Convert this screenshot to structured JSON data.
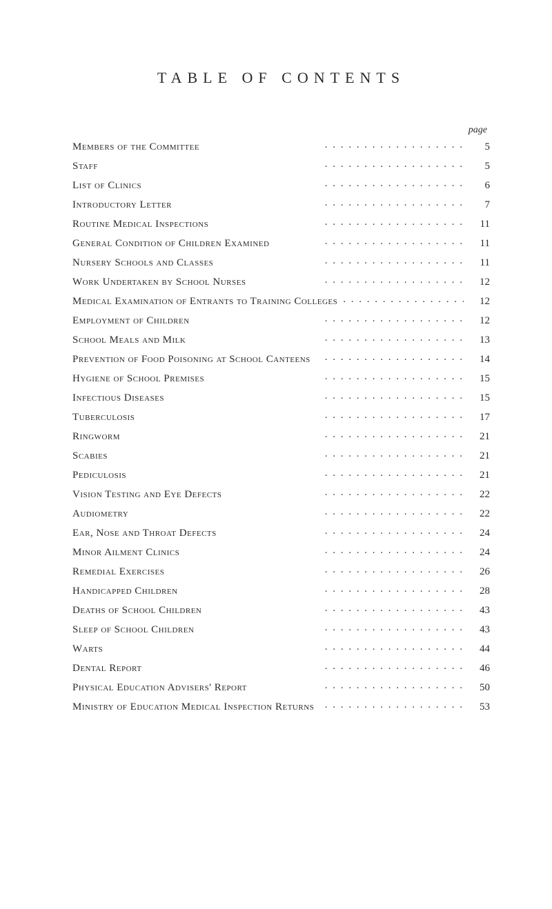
{
  "title": "TABLE OF CONTENTS",
  "pageHeader": "page",
  "entries": [
    {
      "label": "Members of the Committee",
      "page": "5"
    },
    {
      "label": "Staff",
      "page": "5"
    },
    {
      "label": "List of Clinics",
      "page": "6"
    },
    {
      "label": "Introductory Letter",
      "page": "7"
    },
    {
      "label": "Routine Medical Inspections",
      "page": "11"
    },
    {
      "label": "General Condition of Children Examined",
      "page": "11"
    },
    {
      "label": "Nursery Schools and Classes",
      "page": "11"
    },
    {
      "label": "Work Undertaken by School Nurses",
      "page": "12"
    },
    {
      "label": "Medical Examination of Entrants to Training Colleges",
      "page": "12"
    },
    {
      "label": "Employment of Children",
      "page": "12"
    },
    {
      "label": "School Meals and Milk",
      "page": "13"
    },
    {
      "label": "Prevention of Food Poisoning at School Canteens",
      "page": "14"
    },
    {
      "label": "Hygiene of School Premises",
      "page": "15"
    },
    {
      "label": "Infectious Diseases",
      "page": "15"
    },
    {
      "label": "Tuberculosis",
      "page": "17"
    },
    {
      "label": "Ringworm",
      "page": "21"
    },
    {
      "label": "Scabies",
      "page": "21"
    },
    {
      "label": "Pediculosis",
      "page": "21"
    },
    {
      "label": "Vision Testing and Eye Defects",
      "page": "22"
    },
    {
      "label": "Audiometry",
      "page": "22"
    },
    {
      "label": "Ear, Nose and Throat Defects",
      "page": "24"
    },
    {
      "label": "Minor Ailment Clinics",
      "page": "24"
    },
    {
      "label": "Remedial Exercises",
      "page": "26"
    },
    {
      "label": "Handicapped Children",
      "page": "28"
    },
    {
      "label": "Deaths of School Children",
      "page": "43"
    },
    {
      "label": "Sleep of School Children",
      "page": "43"
    },
    {
      "label": "Warts",
      "page": "44"
    },
    {
      "label": "Dental Report",
      "page": "46"
    },
    {
      "label": "Physical Education Advisers' Report",
      "page": "50"
    },
    {
      "label": "Ministry of Education Medical Inspection Returns",
      "page": "53"
    }
  ]
}
